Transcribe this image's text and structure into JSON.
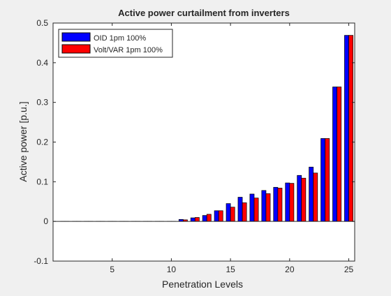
{
  "chart_data": {
    "type": "bar",
    "title": "Active power curtailment from inverters",
    "xlabel": "Penetration Levels",
    "ylabel": "Active power [p.u.]",
    "xlim": [
      0,
      25.5
    ],
    "ylim": [
      -0.1,
      0.5
    ],
    "xticks": [
      "5",
      "10",
      "15",
      "20",
      "25"
    ],
    "yticks": [
      "-0.1",
      "0",
      "0.1",
      "0.2",
      "0.3",
      "0.4",
      "0.5"
    ],
    "grid": false,
    "legend_position": "top-left",
    "categories": [
      1,
      2,
      3,
      4,
      5,
      6,
      7,
      8,
      9,
      10,
      11,
      12,
      13,
      14,
      15,
      16,
      17,
      18,
      19,
      20,
      21,
      22,
      23,
      24,
      25
    ],
    "series": [
      {
        "name": "OID 1pm 100%",
        "color": "#0000ff",
        "values": [
          0,
          0,
          0,
          0,
          0,
          0,
          0,
          0,
          0,
          0,
          0.005,
          0.009,
          0.015,
          0.027,
          0.045,
          0.061,
          0.069,
          0.078,
          0.086,
          0.097,
          0.116,
          0.137,
          0.209,
          0.339,
          0.469
        ]
      },
      {
        "name": "Volt/VAR 1pm 100%",
        "color": "#ff0000",
        "values": [
          0,
          0,
          0,
          0,
          0,
          0,
          0,
          0,
          0,
          0,
          0.004,
          0.01,
          0.018,
          0.027,
          0.036,
          0.047,
          0.059,
          0.07,
          0.084,
          0.096,
          0.109,
          0.122,
          0.209,
          0.339,
          0.469
        ]
      }
    ]
  }
}
